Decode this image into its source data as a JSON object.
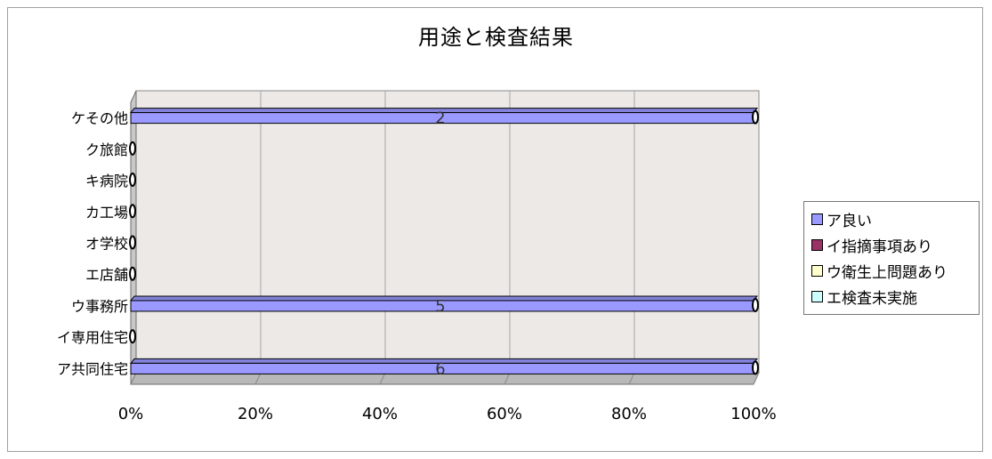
{
  "chart_data": {
    "type": "bar",
    "orientation": "horizontal",
    "stacking": "percent",
    "title": "用途と検査結果",
    "categories": [
      "ア共同住宅",
      "イ専用住宅",
      "ウ事務所",
      "エ店舗",
      "オ学校",
      "カ工場",
      "キ病院",
      "ク旅館",
      "ケその他"
    ],
    "series": [
      {
        "name": "ア良い",
        "color": "#9999ff",
        "values": [
          6,
          0,
          5,
          0,
          0,
          0,
          0,
          0,
          2
        ]
      },
      {
        "name": "イ指摘事項あり",
        "color": "#993366",
        "values": [
          0,
          0,
          0,
          0,
          0,
          0,
          0,
          0,
          0
        ]
      },
      {
        "name": "ウ衛生上問題あり",
        "color": "#ffffcc",
        "values": [
          0,
          0,
          0,
          0,
          0,
          0,
          0,
          0,
          0
        ]
      },
      {
        "name": "エ検査未実施",
        "color": "#ccffff",
        "values": [
          0,
          0,
          0,
          0,
          0,
          0,
          0,
          0,
          0
        ]
      }
    ],
    "x_ticks": [
      "0%",
      "20%",
      "40%",
      "60%",
      "80%",
      "100%"
    ],
    "xlim": [
      0,
      100
    ],
    "grid": true,
    "legend_position": "right",
    "style": "3d"
  }
}
